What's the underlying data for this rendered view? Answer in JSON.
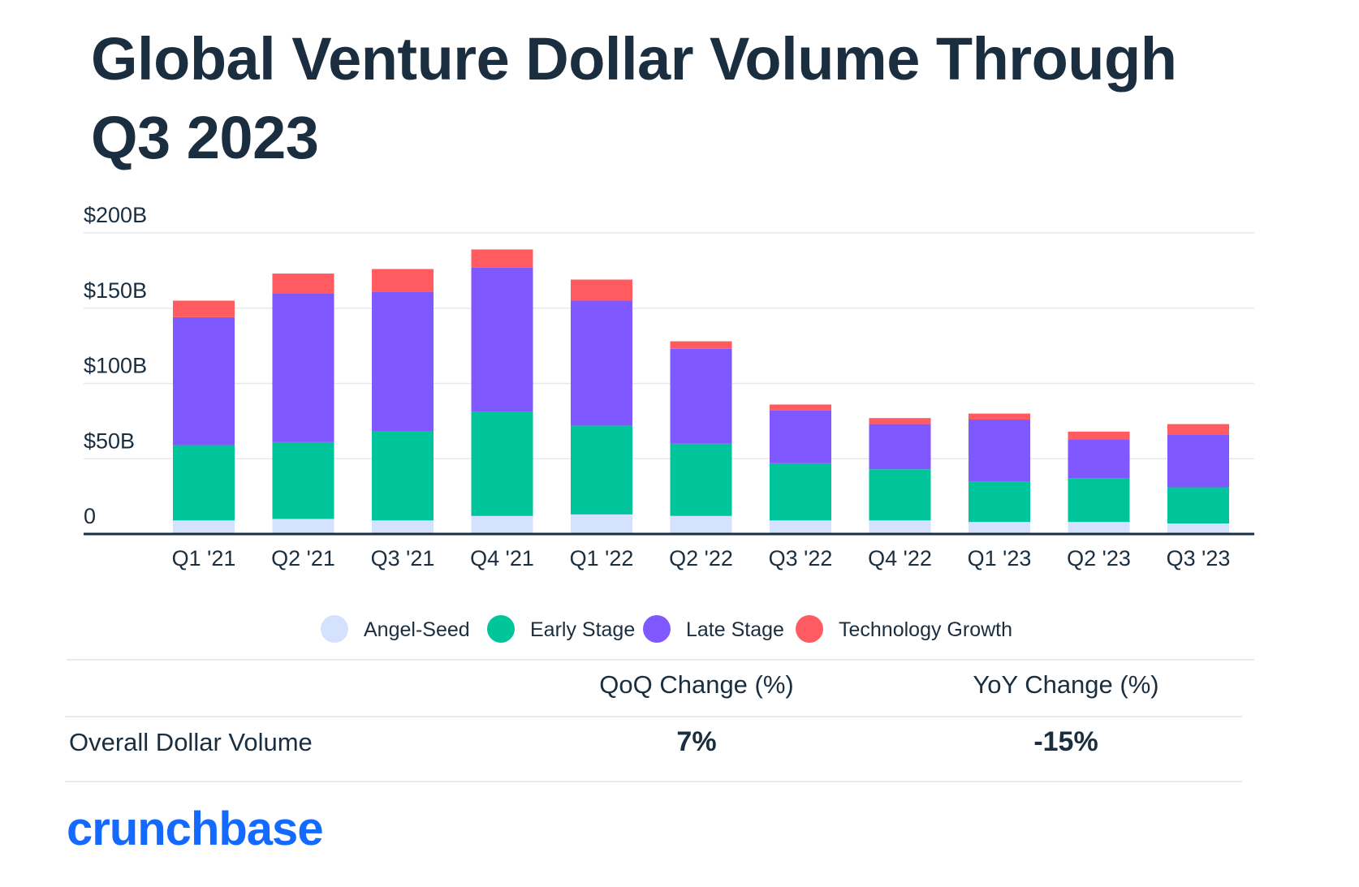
{
  "title": "Global Venture Dollar Volume Through Q3 2023",
  "chart_data": {
    "type": "bar",
    "stacked": true,
    "categories": [
      "Q1 '21",
      "Q2 '21",
      "Q3 '21",
      "Q4 '21",
      "Q1 '22",
      "Q2 '22",
      "Q3 '22",
      "Q4 '22",
      "Q1 '23",
      "Q2 '23",
      "Q3 '23"
    ],
    "series": [
      {
        "name": "Angel-Seed",
        "color": "#d4e2ff",
        "values": [
          9,
          10,
          9,
          12,
          13,
          12,
          9,
          9,
          8,
          8,
          7
        ]
      },
      {
        "name": "Early Stage",
        "color": "#00c49a",
        "values": [
          50,
          51,
          59,
          69,
          59,
          48,
          38,
          34,
          27,
          29,
          24
        ]
      },
      {
        "name": "Late Stage",
        "color": "#8058ff",
        "values": [
          85,
          99,
          93,
          96,
          83,
          63,
          35,
          30,
          41,
          26,
          35
        ]
      },
      {
        "name": "Technology Growth",
        "color": "#ff5b60",
        "values": [
          11,
          13,
          15,
          12,
          14,
          5,
          4,
          4,
          4,
          5,
          7
        ]
      }
    ],
    "ylim": [
      0,
      200
    ],
    "yticks": [
      {
        "value": 0,
        "label": "0"
      },
      {
        "value": 50,
        "label": "$50B"
      },
      {
        "value": 100,
        "label": "$100B"
      },
      {
        "value": 150,
        "label": "$150B"
      },
      {
        "value": 200,
        "label": "$200B"
      }
    ],
    "grid": true,
    "legend_position": "bottom"
  },
  "table": {
    "headers": [
      "QoQ Change (%)",
      "YoY Change (%)"
    ],
    "row_label": "Overall Dollar Volume",
    "values": [
      "7%",
      "-15%"
    ]
  },
  "brand": "crunchbase"
}
